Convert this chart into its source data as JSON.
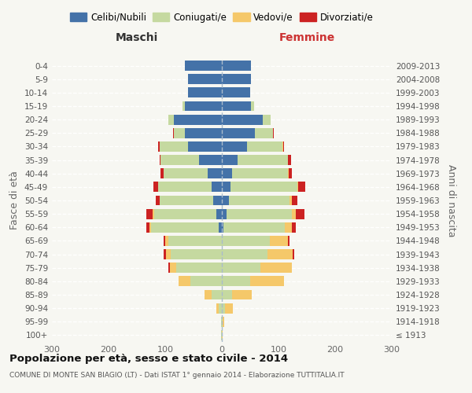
{
  "age_groups": [
    "0-4",
    "5-9",
    "10-14",
    "15-19",
    "20-24",
    "25-29",
    "30-34",
    "35-39",
    "40-44",
    "45-49",
    "50-54",
    "55-59",
    "60-64",
    "65-69",
    "70-74",
    "75-79",
    "80-84",
    "85-89",
    "90-94",
    "95-99",
    "100+"
  ],
  "birth_years": [
    "2009-2013",
    "2004-2008",
    "1999-2003",
    "1994-1998",
    "1989-1993",
    "1984-1988",
    "1979-1983",
    "1974-1978",
    "1969-1973",
    "1964-1968",
    "1959-1963",
    "1954-1958",
    "1949-1953",
    "1944-1948",
    "1939-1943",
    "1934-1938",
    "1929-1933",
    "1924-1928",
    "1919-1923",
    "1914-1918",
    "≤ 1913"
  ],
  "maschi": {
    "celibi": [
      65,
      60,
      60,
      65,
      85,
      65,
      60,
      40,
      25,
      18,
      15,
      10,
      5,
      0,
      0,
      0,
      0,
      0,
      0,
      0,
      0
    ],
    "coniugati": [
      0,
      0,
      0,
      5,
      10,
      20,
      50,
      68,
      78,
      95,
      95,
      110,
      120,
      95,
      90,
      80,
      55,
      18,
      5,
      2,
      1
    ],
    "vedovi": [
      0,
      0,
      0,
      0,
      0,
      0,
      0,
      0,
      0,
      0,
      0,
      2,
      3,
      5,
      8,
      12,
      22,
      12,
      5,
      0,
      0
    ],
    "divorziati": [
      0,
      0,
      0,
      0,
      0,
      1,
      2,
      2,
      5,
      8,
      6,
      12,
      6,
      3,
      5,
      2,
      0,
      0,
      0,
      0,
      0
    ]
  },
  "femmine": {
    "nubili": [
      52,
      52,
      50,
      52,
      72,
      58,
      45,
      28,
      18,
      15,
      12,
      8,
      3,
      0,
      0,
      0,
      0,
      0,
      0,
      0,
      0
    ],
    "coniugate": [
      0,
      0,
      0,
      5,
      14,
      32,
      62,
      88,
      98,
      118,
      108,
      115,
      108,
      85,
      80,
      68,
      50,
      18,
      5,
      2,
      0
    ],
    "vedove": [
      0,
      0,
      0,
      0,
      0,
      0,
      1,
      1,
      2,
      2,
      3,
      8,
      12,
      32,
      45,
      55,
      60,
      35,
      15,
      2,
      1
    ],
    "divorziate": [
      0,
      0,
      0,
      0,
      0,
      1,
      2,
      5,
      5,
      12,
      10,
      15,
      8,
      2,
      3,
      1,
      0,
      0,
      0,
      0,
      0
    ]
  },
  "colors": {
    "celibi_nubili": "#4472a8",
    "coniugati_e": "#c5d9a0",
    "vedovi_e": "#f5c86a",
    "divorziati_e": "#cc2222"
  },
  "xlim": 300,
  "title1": "Popolazione per età, sesso e stato civile - 2014",
  "title2": "COMUNE DI MONTE SAN BIAGIO (LT) - Dati ISTAT 1° gennaio 2014 - Elaborazione TUTTITALIA.IT",
  "ylabel_left": "Fasce di età",
  "ylabel_right": "Anni di nascita",
  "label_maschi": "Maschi",
  "label_femmine": "Femmine",
  "legend_labels": [
    "Celibi/Nubili",
    "Coniugati/e",
    "Vedovi/e",
    "Divorziati/e"
  ],
  "bg_color": "#f7f7f2",
  "bar_height": 0.75
}
